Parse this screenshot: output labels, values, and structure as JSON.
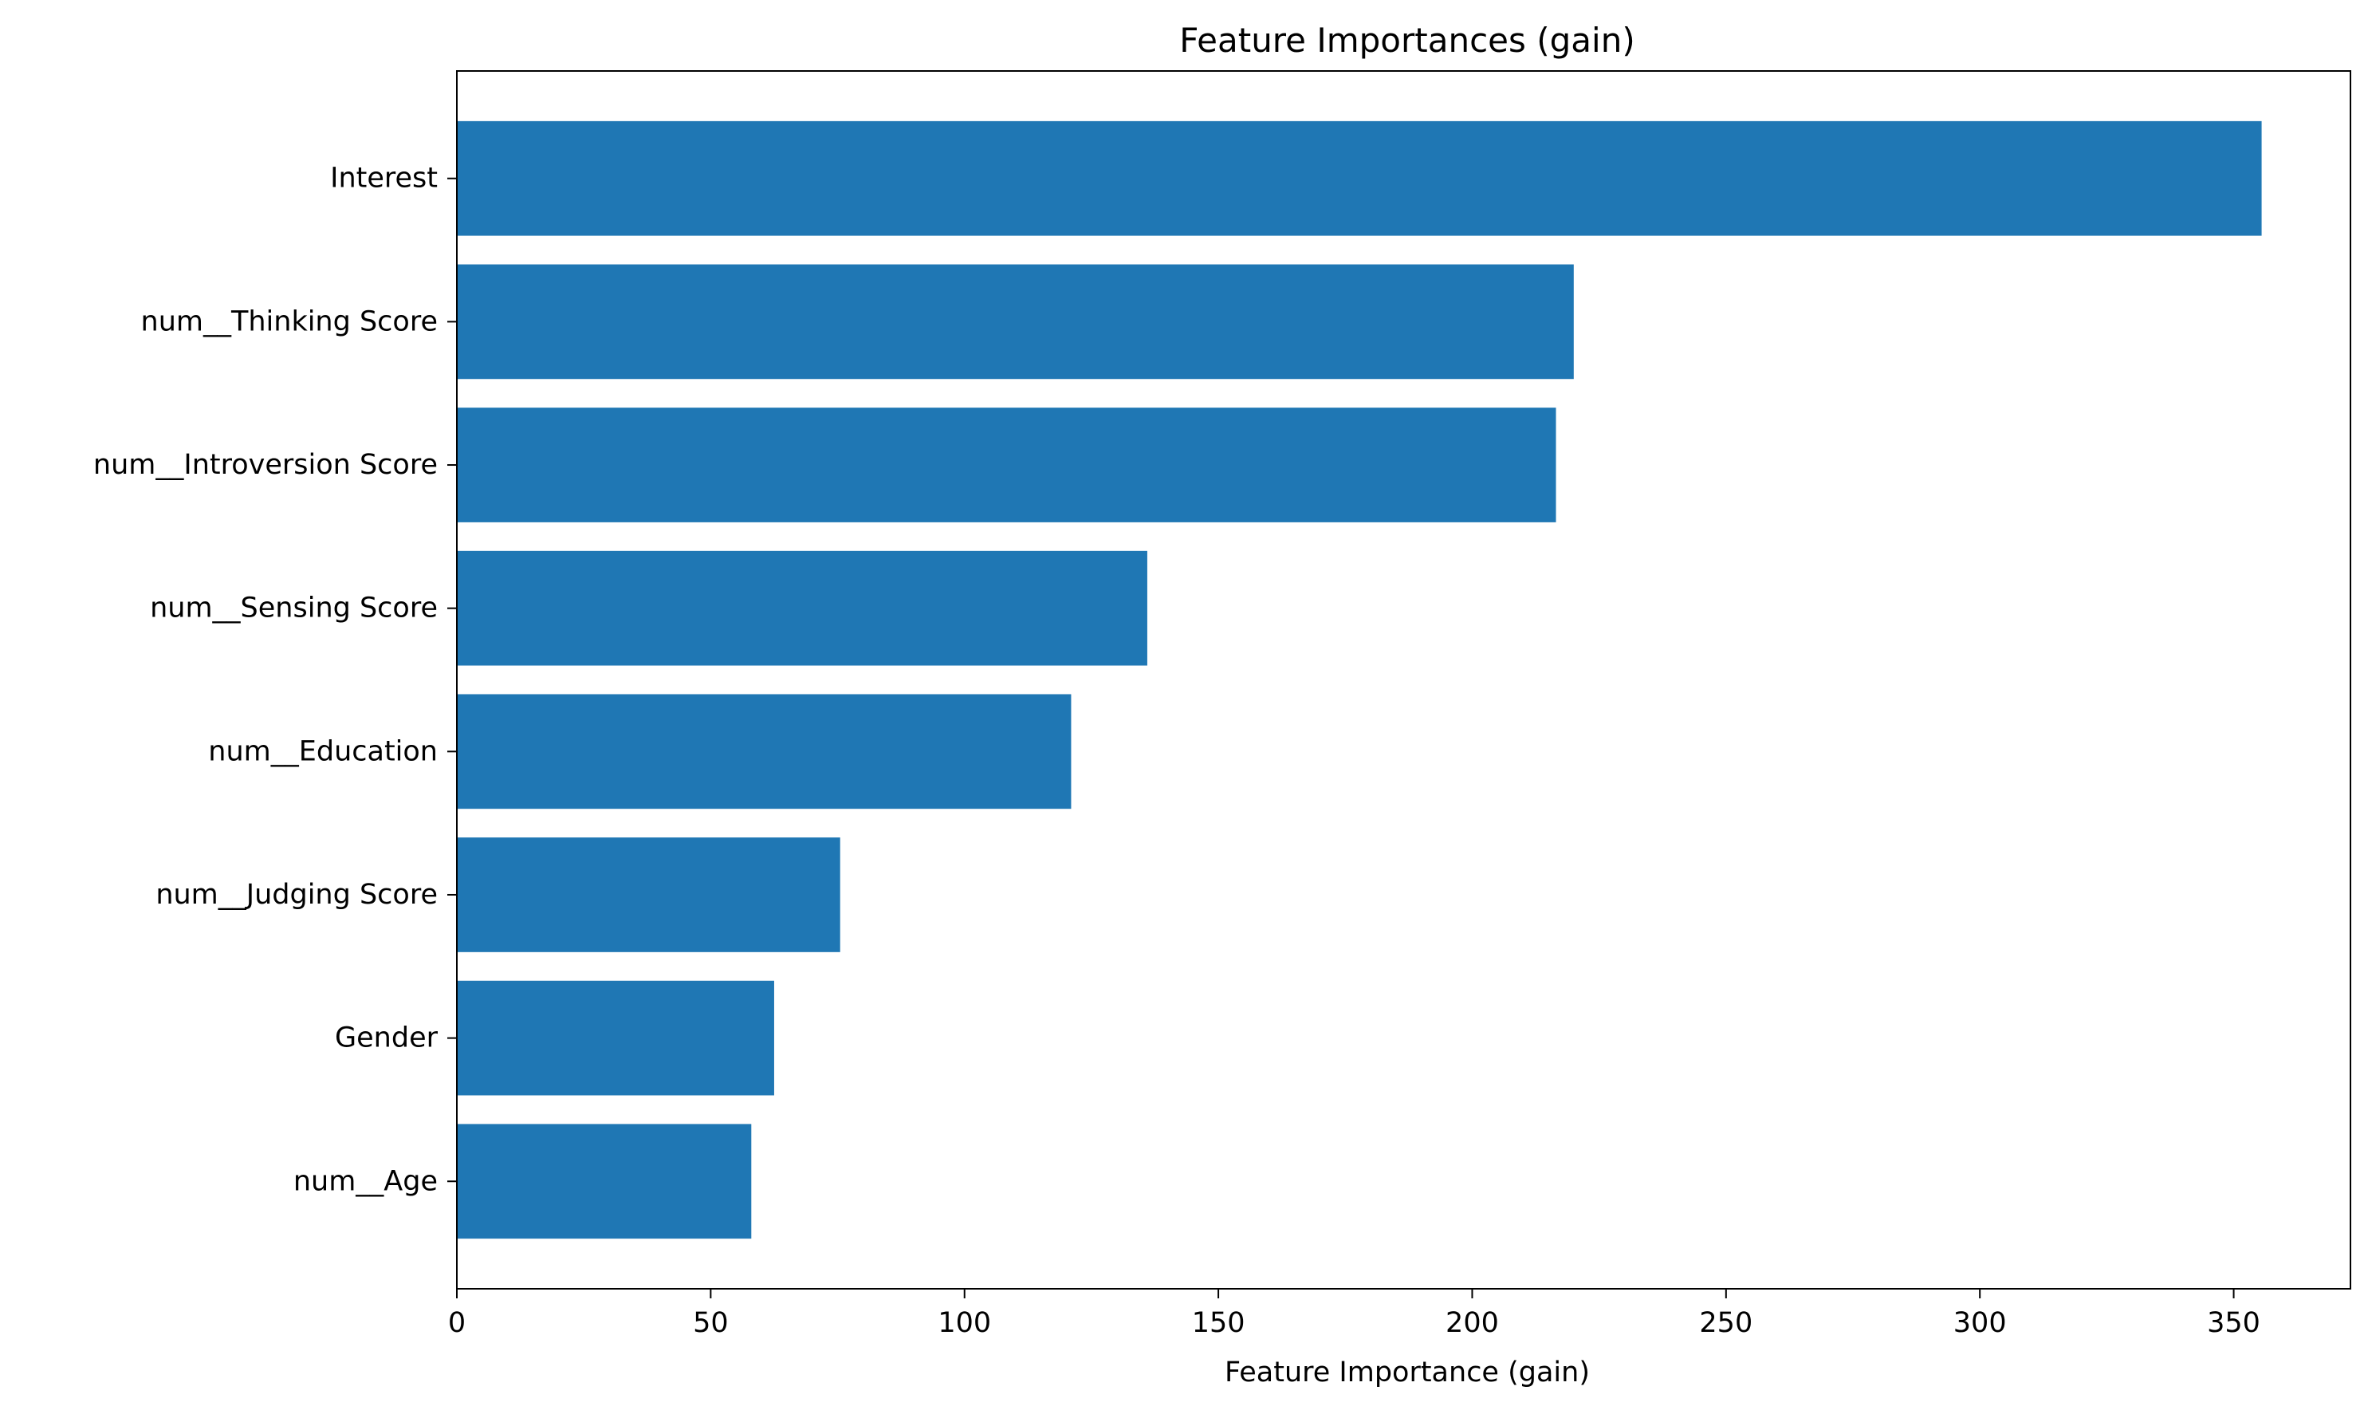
{
  "chart_data": {
    "type": "bar",
    "orientation": "horizontal",
    "title": "Feature Importances (gain)",
    "xlabel": "Feature Importance (gain)",
    "ylabel": "",
    "categories": [
      "Interest",
      "num__Thinking Score",
      "num__Introversion Score",
      "num__Sensing Score",
      "num__Education",
      "num__Judging Score",
      "Gender",
      "num__Age"
    ],
    "values": [
      355.5,
      220.0,
      216.5,
      136.0,
      121.0,
      75.5,
      62.5,
      58.0
    ],
    "xlim": [
      0,
      373
    ],
    "xticks": [
      0,
      50,
      100,
      150,
      200,
      250,
      300,
      350
    ],
    "xtick_labels": [
      "0",
      "50",
      "100",
      "150",
      "200",
      "250",
      "300",
      "350"
    ],
    "grid": false,
    "bar_color": "#1f77b4"
  }
}
